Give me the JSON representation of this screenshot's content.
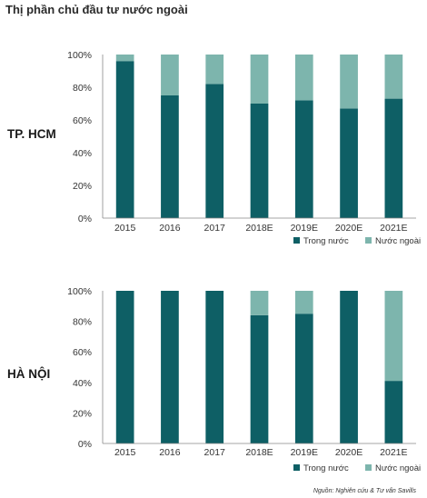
{
  "title": "Thị phần chủ đầu tư nước ngoài",
  "source": "Nguồn: Nghiên cứu & Tư vấn Savills",
  "colors": {
    "domestic": "#0e5f65",
    "foreign": "#7db5ad"
  },
  "chart_data": [
    {
      "type": "bar",
      "stacked": true,
      "title": "TP. HCM",
      "categories": [
        "2015",
        "2016",
        "2017",
        "2018E",
        "2019E",
        "2020E",
        "2021E"
      ],
      "series": [
        {
          "name": "Trong nước",
          "values": [
            96,
            75,
            82,
            70,
            72,
            67,
            73
          ]
        },
        {
          "name": "Nước ngoài",
          "values": [
            4,
            25,
            18,
            30,
            28,
            33,
            27
          ]
        }
      ],
      "ylim": [
        0,
        100
      ],
      "yticks": [
        "0%",
        "20%",
        "40%",
        "60%",
        "80%",
        "100%"
      ],
      "legend": "bottom-right",
      "grid": false
    },
    {
      "type": "bar",
      "stacked": true,
      "title": "HÀ NỘI",
      "categories": [
        "2015",
        "2016",
        "2017",
        "2018E",
        "2019E",
        "2020E",
        "2021E"
      ],
      "series": [
        {
          "name": "Trong nước",
          "values": [
            100,
            100,
            100,
            84,
            85,
            100,
            41
          ]
        },
        {
          "name": "Nước ngoài",
          "values": [
            0,
            0,
            0,
            16,
            15,
            0,
            59
          ]
        }
      ],
      "ylim": [
        0,
        100
      ],
      "yticks": [
        "0%",
        "20%",
        "40%",
        "60%",
        "80%",
        "100%"
      ],
      "legend": "bottom-right",
      "grid": false
    }
  ]
}
